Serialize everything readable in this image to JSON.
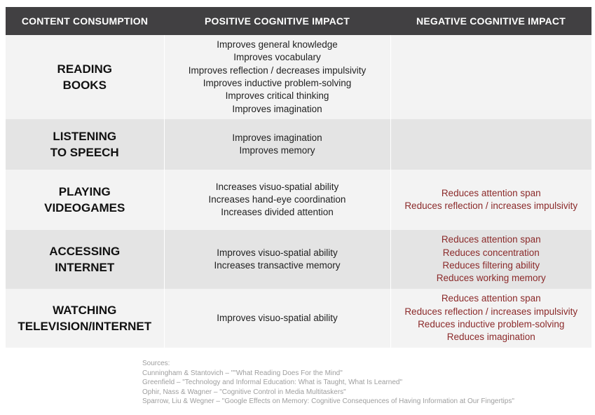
{
  "headers": {
    "col1": "CONTENT CONSUMPTION",
    "col2": "POSITIVE COGNITIVE IMPACT",
    "col3": "NEGATIVE COGNITIVE IMPACT"
  },
  "rows": [
    {
      "label": [
        "READING",
        "BOOKS"
      ],
      "positive": [
        "Improves general knowledge",
        "Improves vocabulary",
        "Improves reflection / decreases impulsivity",
        "Improves inductive problem-solving",
        "Improves critical thinking",
        "Improves imagination"
      ],
      "negative": []
    },
    {
      "label": [
        "LISTENING",
        "TO SPEECH"
      ],
      "positive": [
        "Improves imagination",
        "Improves memory"
      ],
      "negative": []
    },
    {
      "label": [
        "PLAYING",
        "VIDEOGAMES"
      ],
      "positive": [
        "Increases visuo-spatial ability",
        "Increases hand-eye coordination",
        "Increases divided attention"
      ],
      "negative": [
        "Reduces attention span",
        "Reduces reflection / increases impulsivity"
      ]
    },
    {
      "label": [
        "ACCESSING",
        "INTERNET"
      ],
      "positive": [
        "Improves visuo-spatial ability",
        "Increases transactive memory"
      ],
      "negative": [
        "Reduces attention span",
        "Reduces concentration",
        "Reduces filtering ability",
        "Reduces working memory"
      ]
    },
    {
      "label": [
        "WATCHING",
        "TELEVISION/INTERNET"
      ],
      "positive": [
        "Improves visuo-spatial ability"
      ],
      "negative": [
        "Reduces attention span",
        "Reduces reflection / increases impulsivity",
        "Reduces inductive problem-solving",
        "Reduces imagination"
      ]
    }
  ],
  "colors": {
    "header_bg": "#414042",
    "negative_text": "#8b2a2a",
    "row_light": "#f3f3f3",
    "row_dark": "#e4e4e4"
  },
  "sources": {
    "title": "Sources:",
    "items": [
      "Cunningham & Stantovich – \"\"What Reading Does For the Mind\"",
      "Greenfield – \"Technology and Informal Education: What is Taught, What Is Learned\"",
      "Ophir, Nass & Wagner – \"Cognitive Control in Media Multitaskers\"",
      "Sparrow, Liu & Wegner – \"Google Effects on Memory: Cognitive Consequences of Having Information at Our Fingertips\""
    ]
  }
}
